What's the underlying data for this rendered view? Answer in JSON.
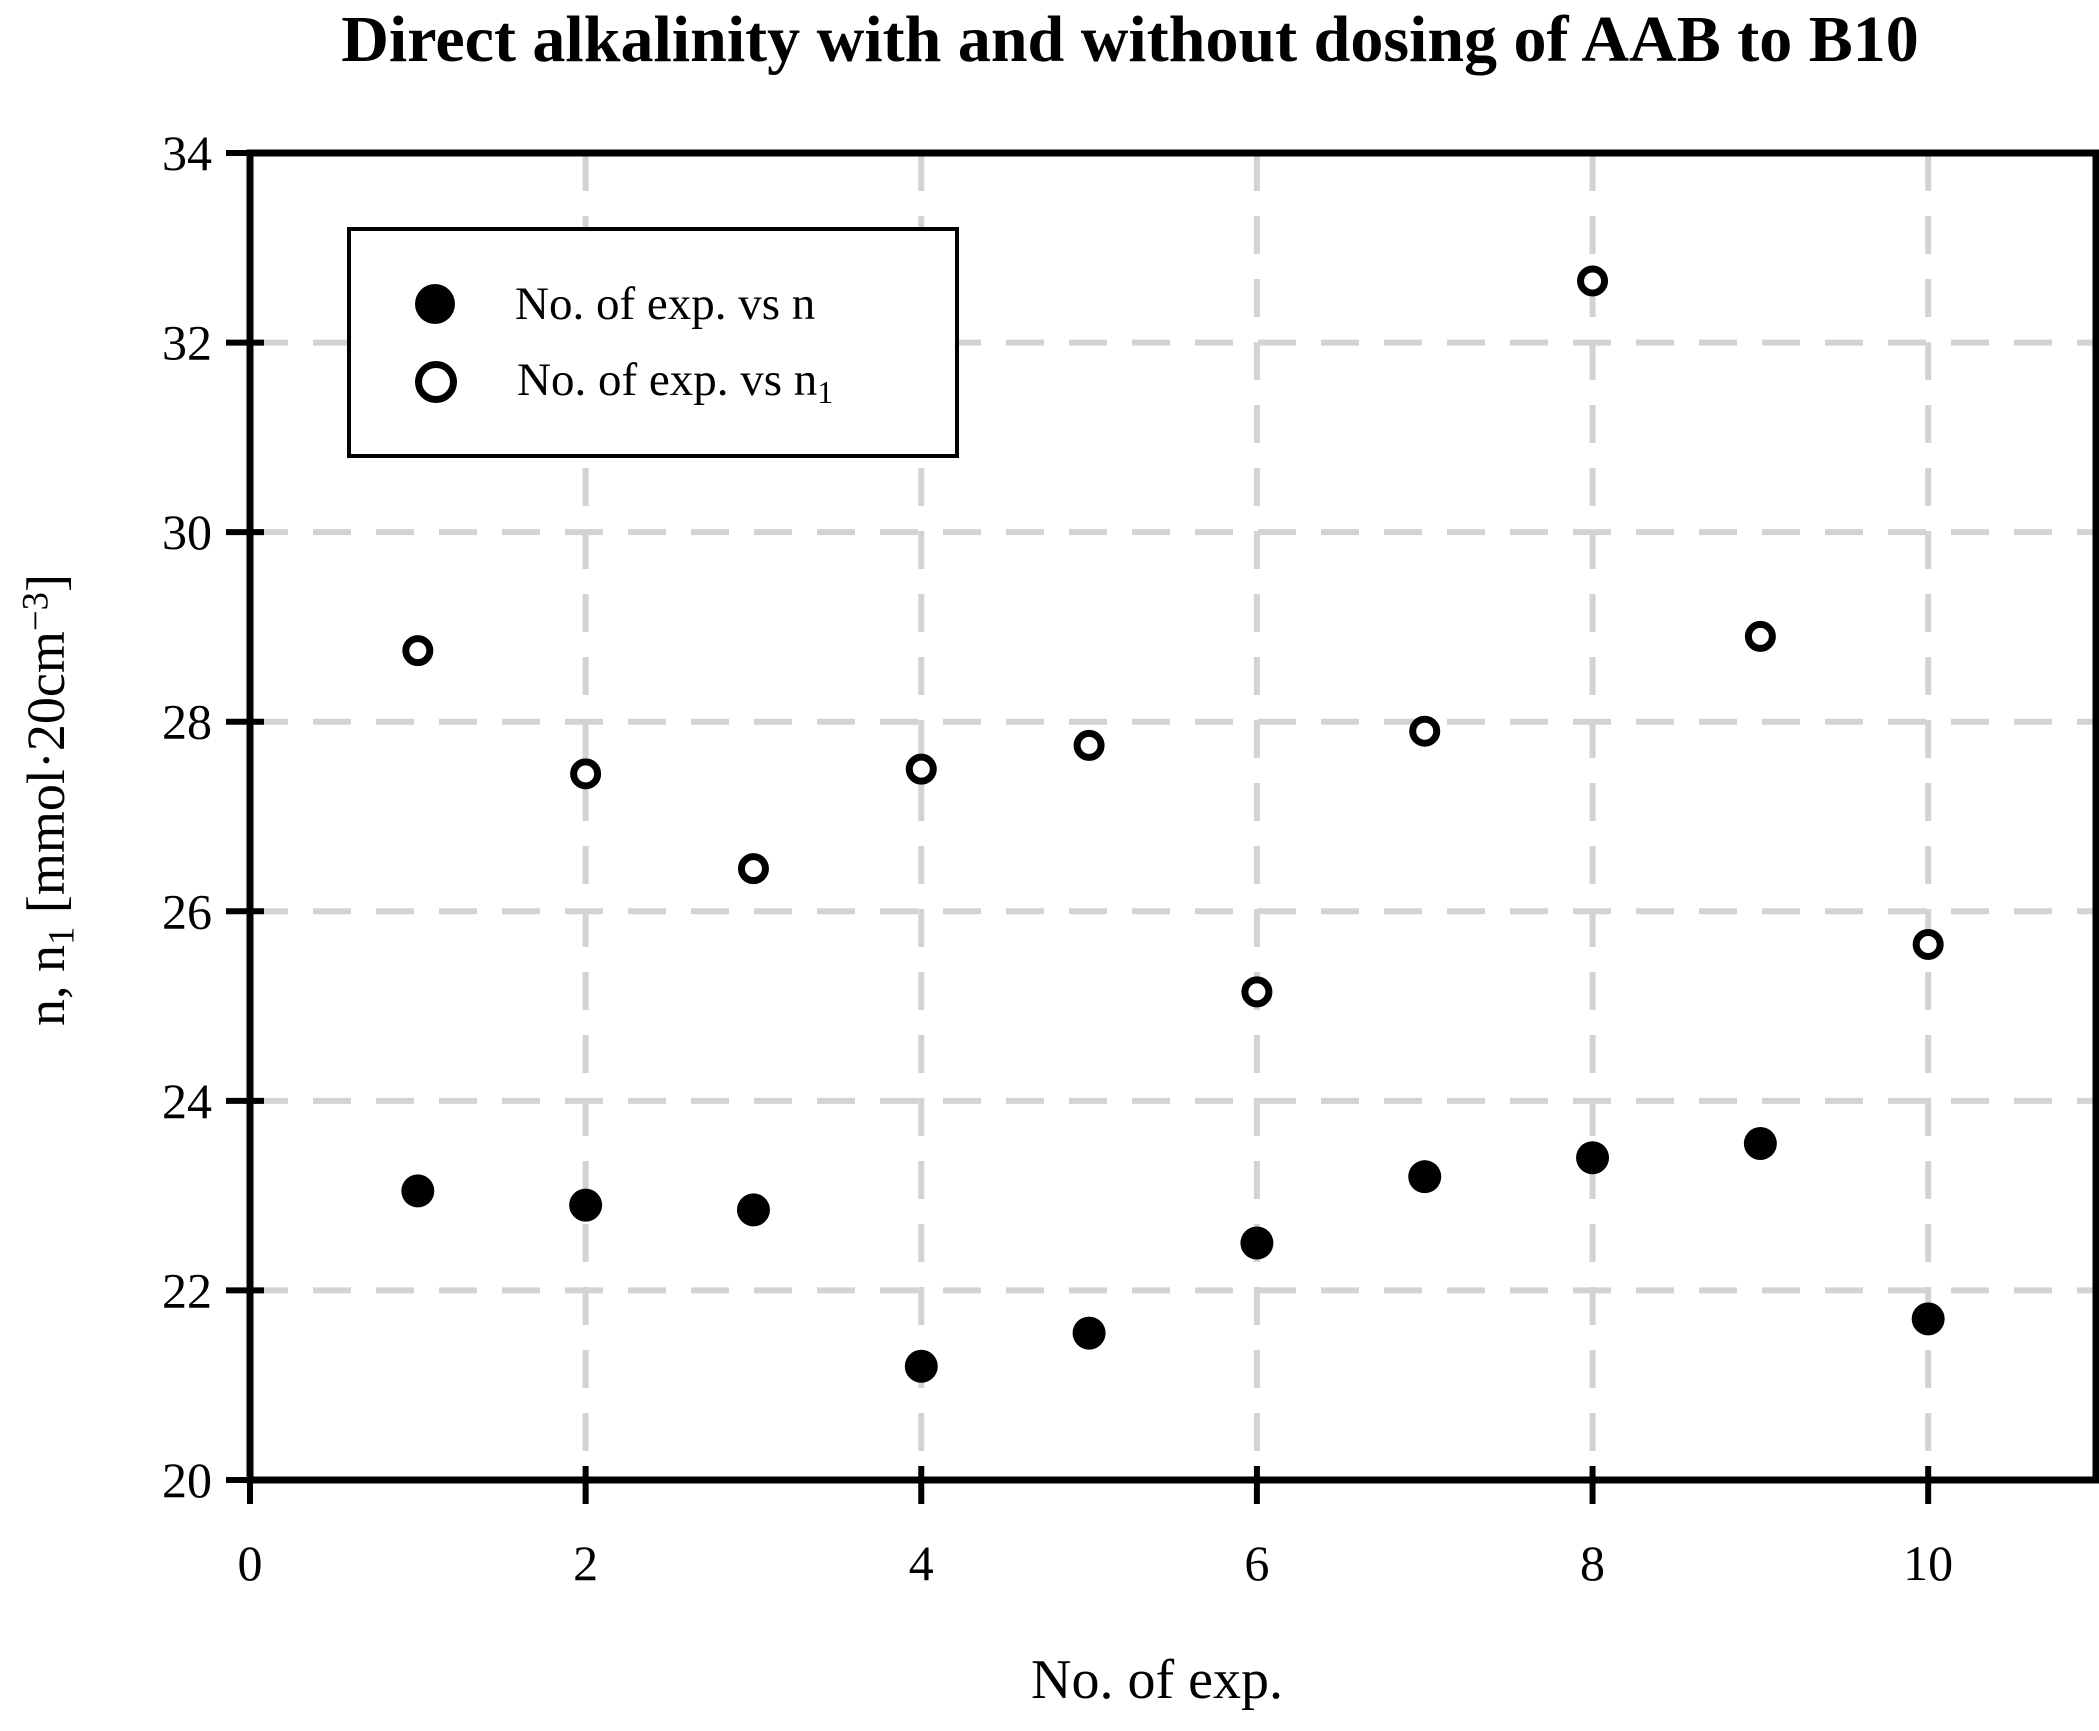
{
  "chart_data": {
    "type": "scatter",
    "title": "Direct alkalinity with and without dosing of AAB to B10",
    "xlabel": "No. of exp.",
    "ylabel": "n, n1 [mmol·20cm⁻³]",
    "xlim": [
      0,
      11
    ],
    "ylim": [
      20,
      34
    ],
    "xticks": [
      0,
      2,
      4,
      6,
      8,
      10
    ],
    "yticks": [
      20,
      22,
      24,
      26,
      28,
      30,
      32,
      34
    ],
    "grid": "dashed light-gray lines at major ticks",
    "legend_position": "upper left",
    "x": [
      1,
      2,
      3,
      4,
      5,
      6,
      7,
      8,
      9,
      10
    ],
    "series": [
      {
        "name": "No. of exp. vs n",
        "marker": "filled-circle",
        "color": "#000000",
        "values": [
          23.05,
          22.9,
          22.85,
          21.2,
          21.55,
          22.5,
          23.2,
          23.4,
          23.55,
          21.7
        ]
      },
      {
        "name": "No. of exp. vs n1",
        "marker": "open-circle",
        "color": "#000000",
        "values": [
          28.75,
          27.45,
          26.45,
          27.5,
          27.75,
          25.15,
          27.9,
          32.65,
          28.9,
          25.65
        ]
      }
    ]
  },
  "title": "Direct alkalinity with and without dosing of AAB to B10",
  "xlabel": "No. of exp.",
  "ylabel_parts": {
    "pre": "n, n",
    "sub": "1",
    "mid": " [mmol·20cm",
    "sup": "−3",
    "post": "]"
  },
  "legend": {
    "item1_label": "No. of exp. vs n",
    "item2_label_pre": "No. of exp. vs n",
    "item2_label_sub": "1"
  },
  "colors": {
    "points": "#000000",
    "grid": "#d3d3d3",
    "frame": "#000000",
    "background": "#ffffff"
  }
}
